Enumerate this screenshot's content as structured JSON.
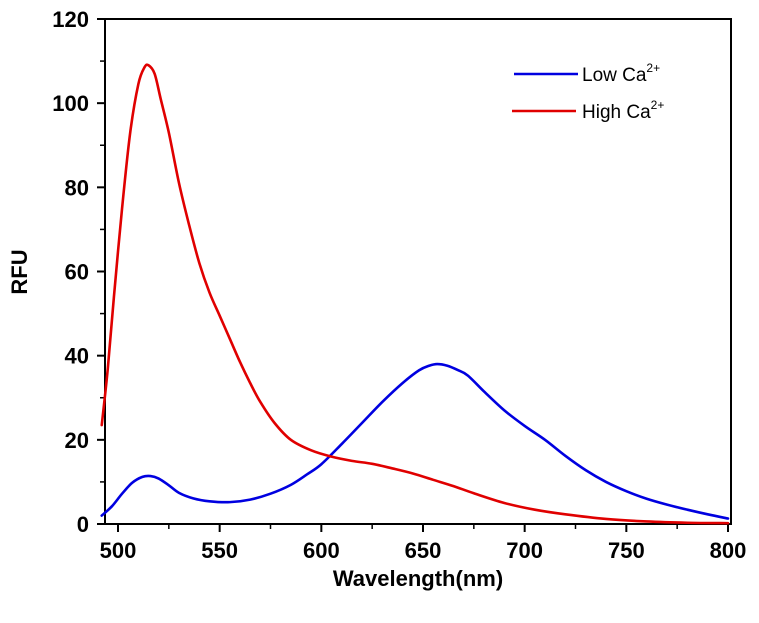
{
  "chart_data": {
    "type": "line",
    "title": "",
    "xlabel": "Wavelength(nm)",
    "ylabel": "RFU",
    "xlim": [
      492,
      800
    ],
    "ylim": [
      0,
      120
    ],
    "x_ticks": [
      500,
      550,
      600,
      650,
      700,
      750,
      800
    ],
    "x_tick_labels": [
      "500",
      "550",
      "600",
      "650",
      "700",
      "750",
      "800"
    ],
    "x_minor_step": 25,
    "y_ticks": [
      0,
      20,
      40,
      60,
      80,
      100,
      120
    ],
    "y_tick_labels": [
      "0",
      "20",
      "40",
      "60",
      "80",
      "100",
      "120"
    ],
    "y_minor_step": 10,
    "grid": false,
    "legend": {
      "position": "top-right",
      "entries": [
        {
          "label": "Low Ca",
          "superscript": "2+",
          "color": "#0000e0"
        },
        {
          "label": "High Ca",
          "superscript": "2+",
          "color": "#e00000"
        }
      ]
    },
    "series": [
      {
        "name": "Low Ca2+",
        "color": "#0000e0",
        "x": [
          492,
          497,
          502,
          507,
          512,
          516,
          520,
          525,
          530,
          537,
          545,
          555,
          565,
          575,
          585,
          593,
          600,
          610,
          620,
          630,
          640,
          648,
          653,
          657,
          662,
          667,
          672,
          680,
          690,
          700,
          710,
          720,
          730,
          740,
          750,
          760,
          770,
          780,
          790,
          800
        ],
        "y": [
          2,
          4.2,
          7.2,
          9.8,
          11.2,
          11.4,
          10.8,
          9.2,
          7.4,
          6.1,
          5.4,
          5.2,
          5.8,
          7.2,
          9.3,
          11.8,
          14.2,
          19,
          24,
          29,
          33.5,
          36.5,
          37.6,
          38,
          37.6,
          36.6,
          35.3,
          31.5,
          27,
          23.3,
          20,
          16.2,
          12.8,
          10,
          7.8,
          6,
          4.6,
          3.4,
          2.3,
          1.3
        ]
      },
      {
        "name": "High Ca2+",
        "color": "#e00000",
        "x": [
          492,
          495,
          498,
          502,
          506,
          510,
          513,
          515,
          518,
          521,
          525,
          530,
          535,
          540,
          545,
          550,
          555,
          560,
          565,
          570,
          577,
          585,
          595,
          605,
          615,
          625,
          635,
          645,
          655,
          665,
          675,
          690,
          705,
          720,
          740,
          760,
          780,
          800
        ],
        "y": [
          23.5,
          37,
          54,
          75,
          93,
          104.5,
          108.5,
          109,
          107,
          101,
          93,
          81,
          71,
          62,
          55,
          49.5,
          44,
          38.5,
          33.5,
          29,
          24,
          20,
          17.5,
          16,
          15,
          14.3,
          13.2,
          12,
          10.5,
          9,
          7.3,
          5,
          3.4,
          2.3,
          1.2,
          0.6,
          0.3,
          0.2
        ]
      }
    ]
  }
}
